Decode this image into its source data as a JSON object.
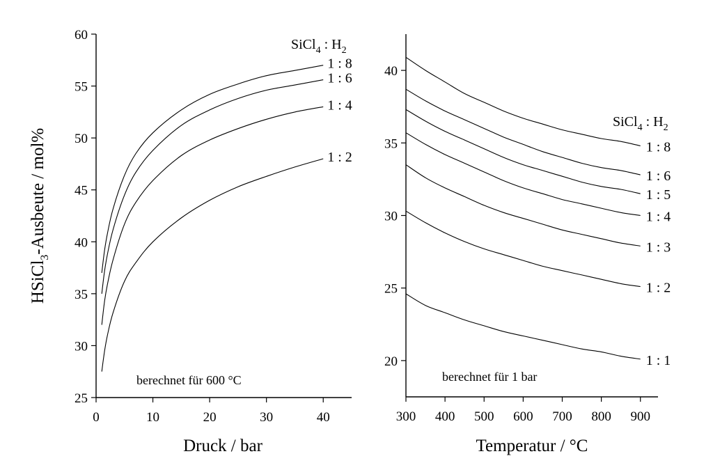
{
  "y_axis_title": {
    "main": "HSiCl",
    "sub": "3",
    "rest": "-Ausbeute / mol%"
  },
  "legend_header": {
    "a": "SiCl",
    "a_sub": "4",
    "sep": " : H",
    "b_sub": "2"
  },
  "chart_data": [
    {
      "type": "line",
      "xlabel": "Druck / bar",
      "ylabel": "HSiCl3-Ausbeute / mol%",
      "xlim": [
        0,
        45
      ],
      "ylim": [
        25,
        60
      ],
      "xticks": [
        0,
        10,
        20,
        30,
        40
      ],
      "yticks": [
        25,
        30,
        35,
        40,
        45,
        50,
        55,
        60
      ],
      "annotation": "berechnet für 600 °C",
      "legend_position": "top-right",
      "series": [
        {
          "name": "1 : 8",
          "x": [
            1,
            1.5,
            2,
            3,
            5,
            7,
            10,
            15,
            20,
            25,
            30,
            35,
            40
          ],
          "y": [
            37.0,
            39.2,
            40.8,
            43.2,
            46.4,
            48.5,
            50.5,
            52.7,
            54.2,
            55.2,
            56.0,
            56.5,
            57.0
          ]
        },
        {
          "name": "1 : 6",
          "x": [
            1,
            1.5,
            2,
            3,
            5,
            7,
            10,
            15,
            20,
            25,
            30,
            35,
            40
          ],
          "y": [
            35.0,
            37.2,
            38.8,
            41.2,
            44.5,
            46.7,
            48.8,
            51.2,
            52.7,
            53.8,
            54.6,
            55.1,
            55.6
          ]
        },
        {
          "name": "1 : 4",
          "x": [
            1,
            1.5,
            2,
            3,
            5,
            7,
            10,
            15,
            20,
            25,
            30,
            35,
            40
          ],
          "y": [
            32.0,
            34.3,
            35.9,
            38.3,
            41.7,
            43.8,
            45.9,
            48.3,
            49.8,
            50.9,
            51.8,
            52.5,
            53.0
          ]
        },
        {
          "name": "1 : 2",
          "x": [
            1,
            1.5,
            2,
            3,
            5,
            7,
            10,
            15,
            20,
            25,
            30,
            35,
            40
          ],
          "y": [
            27.5,
            29.5,
            31.0,
            33.2,
            36.2,
            38.0,
            40.0,
            42.3,
            44.0,
            45.3,
            46.3,
            47.2,
            48.0
          ]
        }
      ]
    },
    {
      "type": "line",
      "xlabel": "Temperatur / °C",
      "ylabel": "",
      "xlim": [
        300,
        945
      ],
      "ylim": [
        17.5,
        42.5
      ],
      "xticks": [
        300,
        400,
        500,
        600,
        700,
        800,
        900
      ],
      "yticks": [
        20,
        25,
        30,
        35,
        40
      ],
      "annotation": "berechnet für 1 bar",
      "legend_position": "right",
      "series": [
        {
          "name": "1 : 8",
          "x": [
            300,
            350,
            400,
            450,
            500,
            550,
            600,
            650,
            700,
            750,
            800,
            850,
            900
          ],
          "y": [
            40.9,
            40.0,
            39.2,
            38.4,
            37.8,
            37.2,
            36.7,
            36.3,
            35.9,
            35.6,
            35.3,
            35.1,
            34.8
          ]
        },
        {
          "name": "1 : 6",
          "x": [
            300,
            350,
            400,
            450,
            500,
            550,
            600,
            650,
            700,
            750,
            800,
            850,
            900
          ],
          "y": [
            38.7,
            37.9,
            37.2,
            36.6,
            36.0,
            35.4,
            34.9,
            34.4,
            34.0,
            33.6,
            33.3,
            33.1,
            32.8
          ]
        },
        {
          "name": "1 : 5",
          "x": [
            300,
            350,
            400,
            450,
            500,
            550,
            600,
            650,
            700,
            750,
            800,
            850,
            900
          ],
          "y": [
            37.3,
            36.5,
            35.8,
            35.2,
            34.6,
            34.0,
            33.5,
            33.1,
            32.7,
            32.3,
            32.0,
            31.8,
            31.5
          ]
        },
        {
          "name": "1 : 4",
          "x": [
            300,
            350,
            400,
            450,
            500,
            550,
            600,
            650,
            700,
            750,
            800,
            850,
            900
          ],
          "y": [
            35.7,
            34.9,
            34.2,
            33.6,
            33.0,
            32.4,
            31.9,
            31.5,
            31.1,
            30.8,
            30.5,
            30.2,
            30.0
          ]
        },
        {
          "name": "1 : 3",
          "x": [
            300,
            350,
            400,
            450,
            500,
            550,
            600,
            650,
            700,
            750,
            800,
            850,
            900
          ],
          "y": [
            33.5,
            32.6,
            31.9,
            31.3,
            30.7,
            30.2,
            29.8,
            29.4,
            29.0,
            28.7,
            28.4,
            28.1,
            27.9
          ]
        },
        {
          "name": "1 : 2",
          "x": [
            300,
            350,
            400,
            450,
            500,
            550,
            600,
            650,
            700,
            750,
            800,
            850,
            900
          ],
          "y": [
            30.3,
            29.5,
            28.8,
            28.2,
            27.7,
            27.3,
            26.9,
            26.5,
            26.2,
            25.9,
            25.6,
            25.3,
            25.1
          ]
        },
        {
          "name": "1 : 1",
          "x": [
            300,
            350,
            400,
            450,
            500,
            550,
            600,
            650,
            700,
            750,
            800,
            850,
            900
          ],
          "y": [
            24.6,
            23.8,
            23.3,
            22.8,
            22.4,
            22.0,
            21.7,
            21.4,
            21.1,
            20.8,
            20.6,
            20.3,
            20.1
          ]
        }
      ]
    }
  ]
}
